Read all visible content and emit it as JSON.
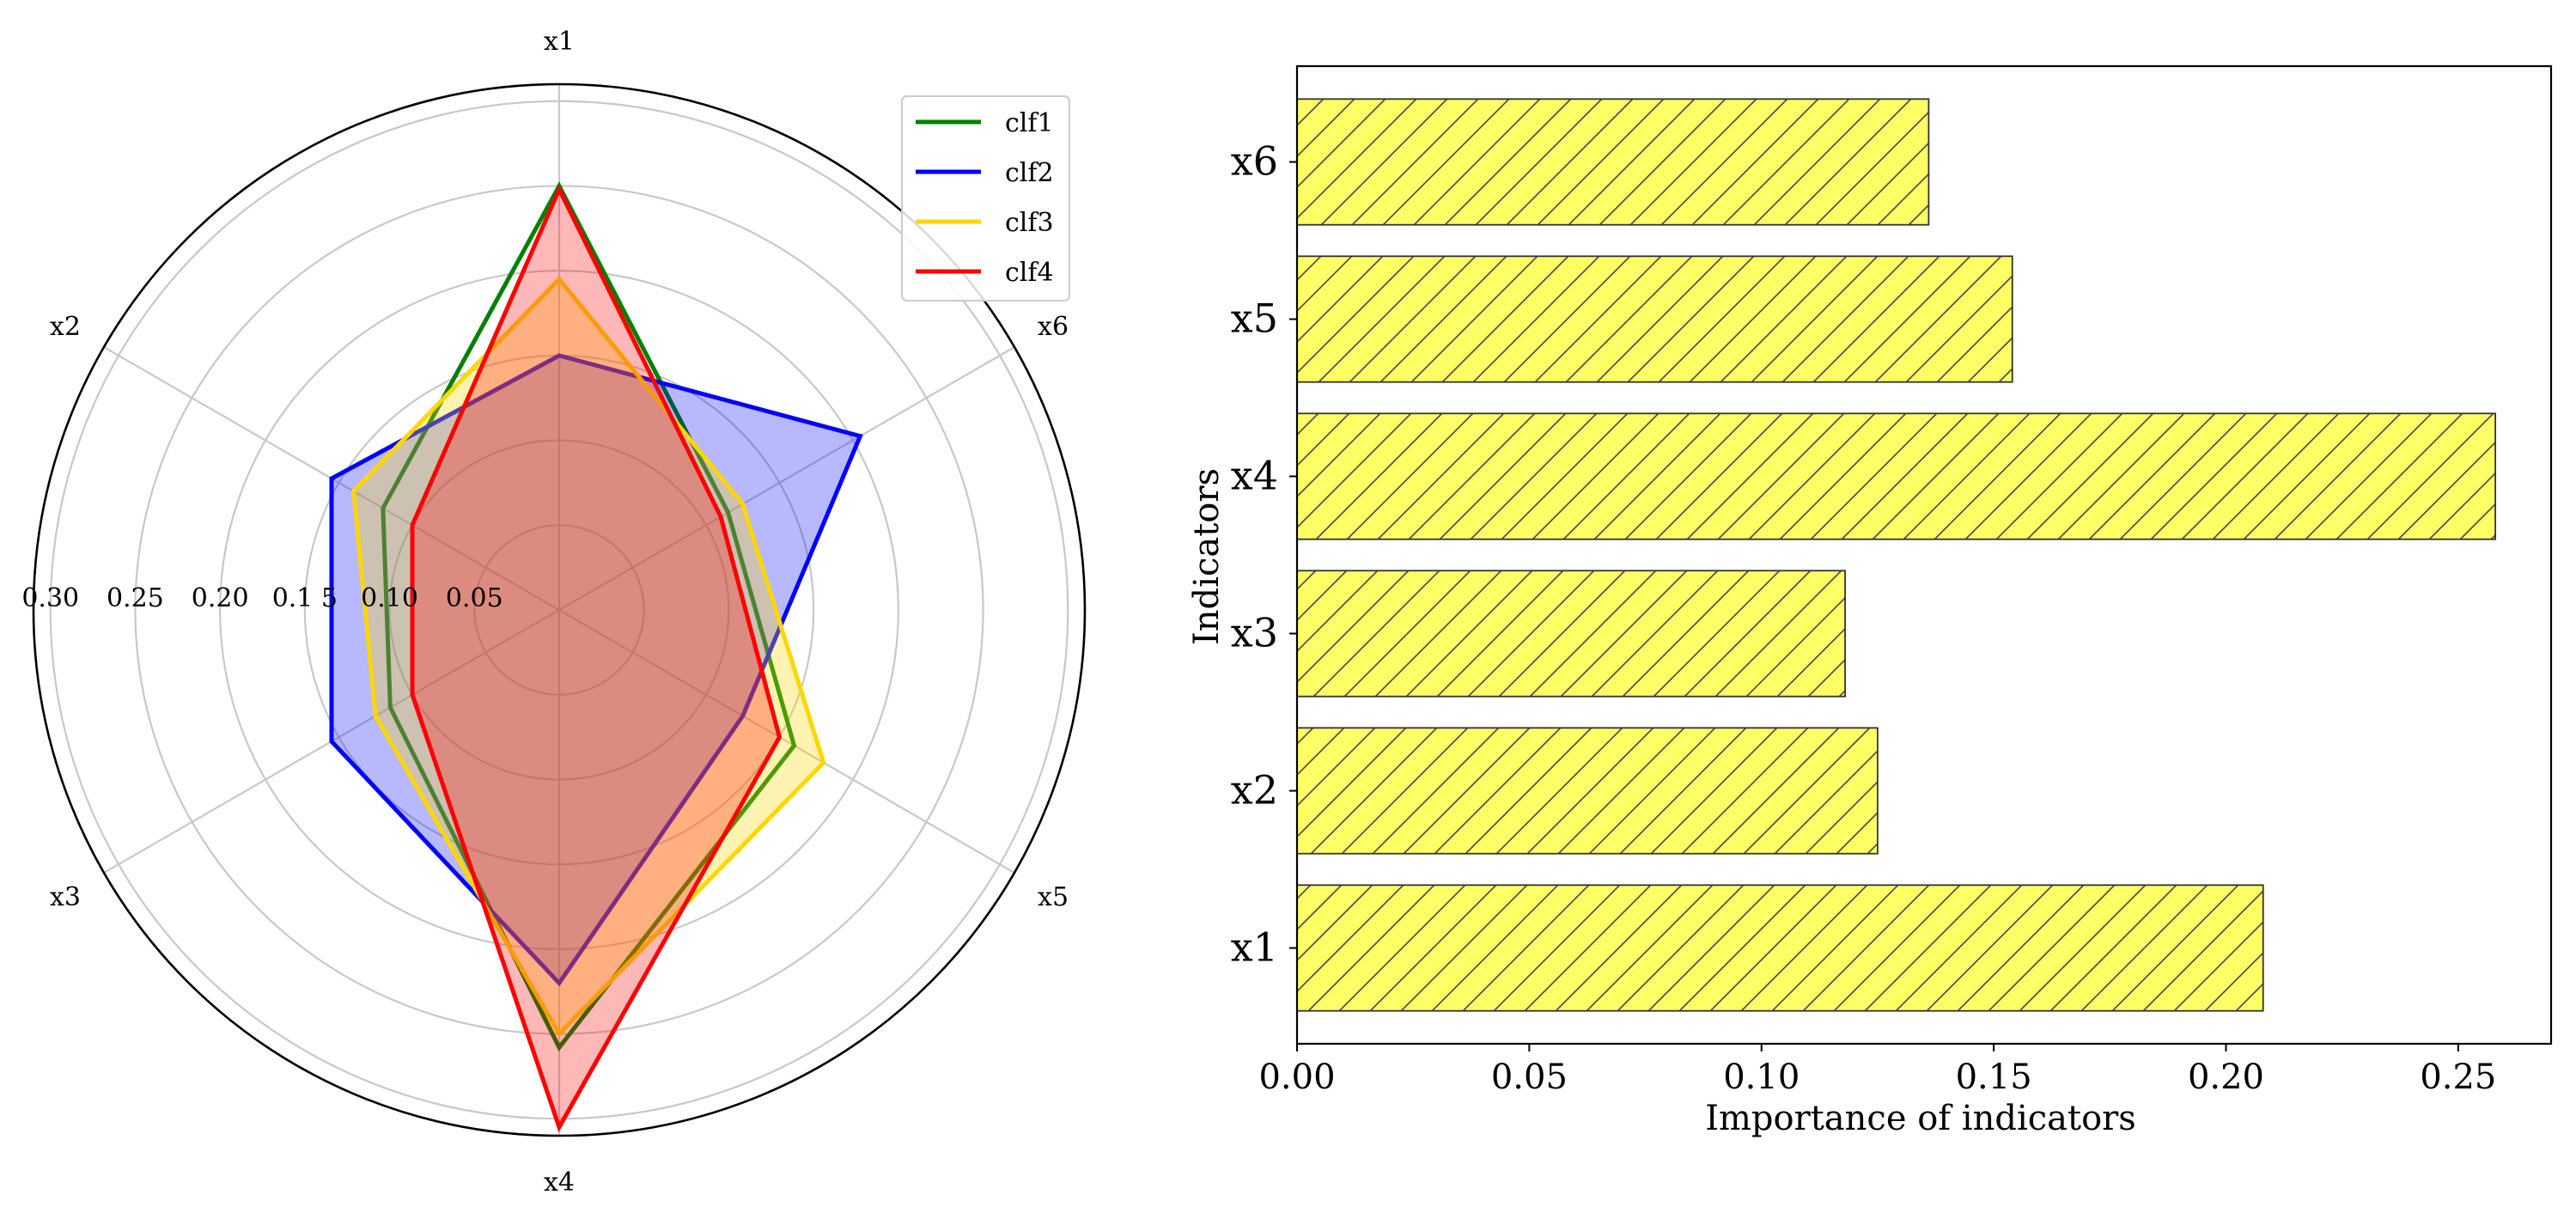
{
  "chart_data": [
    {
      "type": "radar",
      "axes": [
        "x1",
        "x6",
        "x5",
        "x4",
        "x3",
        "x2"
      ],
      "radial_ticks": [
        "0.05",
        "0.10",
        "0.1 5",
        "0.20",
        "0.25",
        "0.30"
      ],
      "radial_tick_values": [
        0.05,
        0.1,
        0.15,
        0.2,
        0.25,
        0.3
      ],
      "rlim": [
        0,
        0.31
      ],
      "grid": true,
      "legend_position": "top-right",
      "series": [
        {
          "name": "clf1",
          "color": "#008000",
          "fill": false,
          "values": {
            "x1": 0.25,
            "x6": 0.115,
            "x5": 0.16,
            "x4": 0.258,
            "x3": 0.115,
            "x2": 0.12
          }
        },
        {
          "name": "clf2",
          "color": "#0000ff",
          "fill": true,
          "fill_opacity": 0.28,
          "values": {
            "x1": 0.15,
            "x6": 0.205,
            "x5": 0.125,
            "x4": 0.22,
            "x3": 0.155,
            "x2": 0.155
          }
        },
        {
          "name": "clf3",
          "color": "#ffd700",
          "fill": true,
          "fill_opacity": 0.3,
          "values": {
            "x1": 0.195,
            "x6": 0.125,
            "x5": 0.18,
            "x4": 0.25,
            "x3": 0.125,
            "x2": 0.14
          }
        },
        {
          "name": "clf4",
          "color": "#ff0000",
          "fill": true,
          "fill_opacity": 0.28,
          "values": {
            "x1": 0.248,
            "x6": 0.11,
            "x5": 0.15,
            "x4": 0.305,
            "x3": 0.1,
            "x2": 0.1
          }
        }
      ]
    },
    {
      "type": "bar",
      "orientation": "horizontal",
      "categories": [
        "x1",
        "x2",
        "x3",
        "x4",
        "x5",
        "x6"
      ],
      "values": [
        0.208,
        0.125,
        0.118,
        0.258,
        0.154,
        0.136
      ],
      "bar_color": "#ffff66",
      "hatch": "diagonal",
      "xlabel": "Importance of indicators",
      "ylabel": "Indicators",
      "xticks": [
        "0.00",
        "0.05",
        "0.10",
        "0.15",
        "0.20",
        "0.25"
      ],
      "xtick_values": [
        0,
        0.05,
        0.1,
        0.15,
        0.2,
        0.25
      ],
      "xlim": [
        0,
        0.27
      ]
    }
  ]
}
